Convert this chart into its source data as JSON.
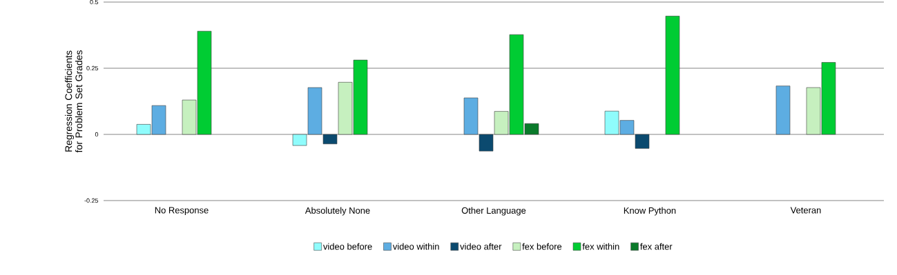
{
  "chart_data": {
    "type": "bar",
    "ylabel": "Regression Coefficients for Problem Set Grades",
    "categories": [
      "No Response",
      "Absolutely None",
      "Other Language",
      "Know Python",
      "Veteran"
    ],
    "series": [
      {
        "name": "video before",
        "color": "#8ffcfc",
        "values": [
          0.038,
          -0.042,
          null,
          0.088,
          null
        ]
      },
      {
        "name": "video within",
        "color": "#5dade2",
        "values": [
          0.109,
          0.177,
          0.138,
          0.053,
          0.183
        ]
      },
      {
        "name": "video after",
        "color": "#0b4a6f",
        "values": [
          null,
          -0.036,
          -0.063,
          -0.053,
          null
        ]
      },
      {
        "name": "fex before",
        "color": "#c6f0bf",
        "values": [
          0.13,
          0.197,
          0.087,
          null,
          0.177
        ]
      },
      {
        "name": "fex within",
        "color": "#00cc33",
        "values": [
          0.39,
          0.281,
          0.377,
          0.447,
          0.272
        ]
      },
      {
        "name": "fex after",
        "color": "#0a7a2a",
        "values": [
          null,
          null,
          0.041,
          null,
          null
        ]
      }
    ],
    "ylim": [
      -0.25,
      0.5
    ],
    "yticks": [
      -0.25,
      0,
      0.25,
      0.5
    ],
    "grid": "y",
    "legend": "bottom"
  }
}
